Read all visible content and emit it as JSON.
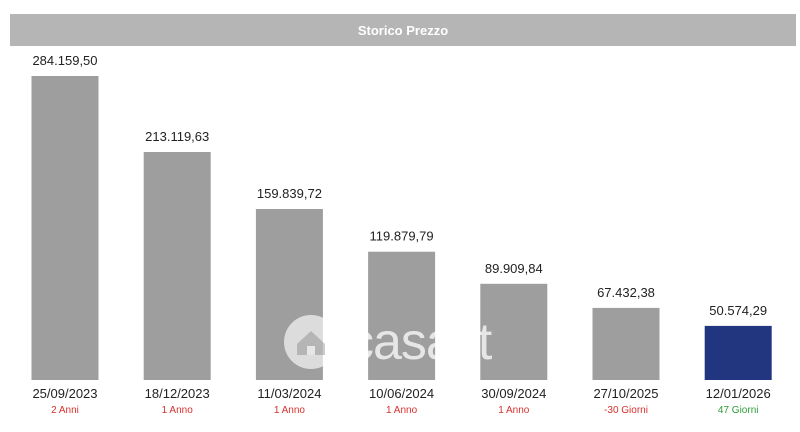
{
  "header": {
    "title": "Storico Prezzo"
  },
  "watermark": {
    "text": "casa.it",
    "icon": "house-in-circle-icon"
  },
  "colors": {
    "bar_default": "#9e9e9e",
    "bar_current": "#22357f",
    "duration_red": "#d9302c",
    "duration_green": "#2e9c3a"
  },
  "chart_data": {
    "type": "bar",
    "title": "Storico Prezzo",
    "categories": [
      "25/09/2023",
      "18/12/2023",
      "11/03/2024",
      "10/06/2024",
      "30/09/2024",
      "27/10/2025",
      "12/01/2026"
    ],
    "values": [
      284159.5,
      213119.63,
      159839.72,
      119879.79,
      89909.84,
      67432.38,
      50574.29
    ],
    "value_labels": [
      "284.159,50",
      "213.119,63",
      "159.839,72",
      "119.879,79",
      "89.909,84",
      "67.432,38",
      "50.574,29"
    ],
    "durations": [
      "2 Anni",
      "1 Anno",
      "1 Anno",
      "1 Anno",
      "1 Anno",
      "-30 Giorni",
      "47 Giorni"
    ],
    "duration_colors": [
      "red",
      "red",
      "red",
      "red",
      "red",
      "red",
      "green"
    ],
    "highlight_index": 6,
    "ylim": [
      0,
      284159.5
    ],
    "grid": false,
    "legend": "none",
    "xlabel": "",
    "ylabel": ""
  }
}
